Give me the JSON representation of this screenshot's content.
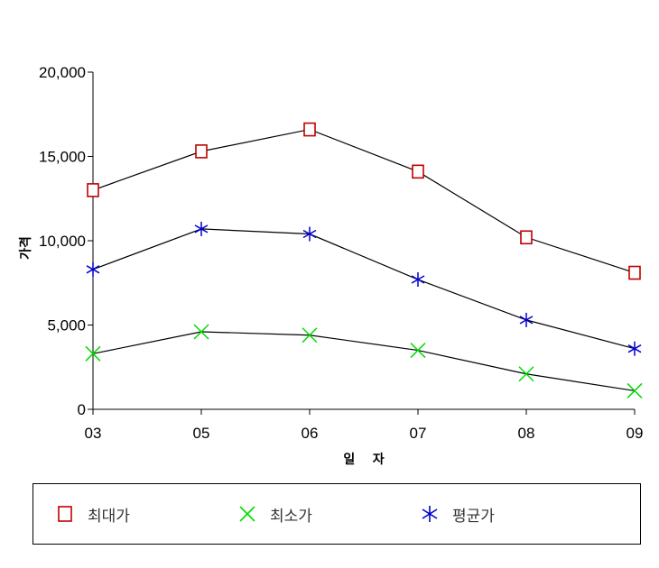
{
  "chart_data": {
    "type": "line",
    "categories": [
      "03",
      "05",
      "06",
      "07",
      "08",
      "09"
    ],
    "series": [
      {
        "name": "최대가",
        "values": [
          13000,
          15300,
          16600,
          14100,
          10200,
          8100
        ],
        "color": "#c00000",
        "marker": "square"
      },
      {
        "name": "최소가",
        "values": [
          3300,
          4600,
          4400,
          3500,
          2100,
          1100
        ],
        "color": "#00dd00",
        "marker": "x"
      },
      {
        "name": "평균가",
        "values": [
          8300,
          10700,
          10400,
          7700,
          5300,
          3600
        ],
        "color": "#0000cc",
        "marker": "asterisk"
      }
    ],
    "line_color": "#000000",
    "xlabel": "일 자",
    "ylabel": "가격",
    "ylim": [
      0,
      20000
    ],
    "yticks": [
      0,
      5000,
      10000,
      15000,
      20000
    ],
    "ytick_labels": [
      "0",
      "5,000",
      "10,000",
      "15,000",
      "20,000"
    ],
    "grid": false,
    "legend_position": "bottom"
  }
}
